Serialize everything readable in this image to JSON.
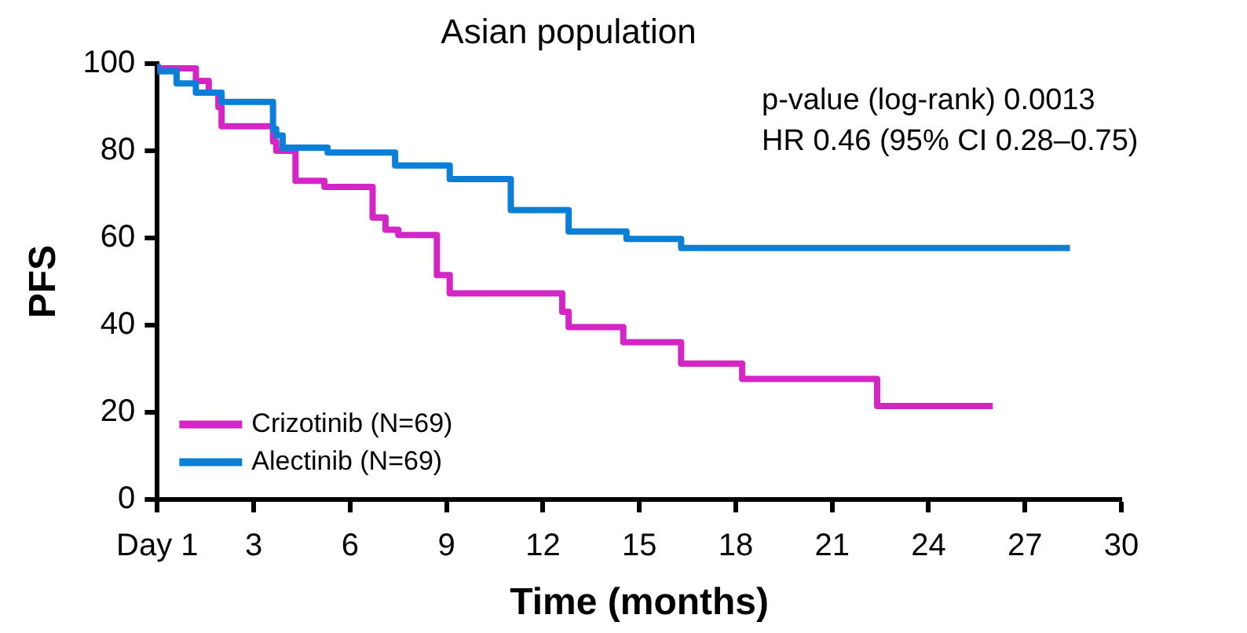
{
  "chart_data": {
    "type": "step",
    "title": "Asian population",
    "xlabel": "Time (months)",
    "ylabel": "PFS",
    "annotations": [
      "p-value (log-rank) 0.0013",
      "HR 0.46 (95% CI 0.28–0.75)"
    ],
    "xlim": [
      0,
      30
    ],
    "xticks": [
      {
        "value": 0,
        "label": "Day 1"
      },
      3,
      6,
      9,
      12,
      15,
      18,
      21,
      24,
      27,
      30
    ],
    "ylim": [
      0,
      100
    ],
    "yticks": [
      0,
      20,
      40,
      60,
      80,
      100
    ],
    "legend": "bottom left",
    "marker": "none",
    "line_style": "solid",
    "series": [
      {
        "name": "Crizotinib (N=69)",
        "color": "#d426c4",
        "x": [
          0,
          1.2,
          1.6,
          1.9,
          2.0,
          3.6,
          3.7,
          4.3,
          5.2,
          6.7,
          7.1,
          7.5,
          8.7,
          9.1,
          12.6,
          12.8,
          14.5,
          16.3,
          18.2,
          22.4,
          25.5,
          26.0
        ],
        "values": [
          100,
          98.9,
          96,
          93.3,
          90,
          85.6,
          82.1,
          80,
          73.1,
          71.7,
          64.7,
          61.9,
          60.7,
          51.5,
          47.3,
          43.1,
          39.6,
          36.1,
          31.2,
          27.7,
          21.5,
          21.5
        ]
      },
      {
        "name": "Alectinib (N=69)",
        "color": "#0a7fd8",
        "x": [
          0,
          0.6,
          1.2,
          2.0,
          3.6,
          3.7,
          3.9,
          5.3,
          7.4,
          9.1,
          11.0,
          12.8,
          14.6,
          16.3,
          17.6,
          28.4
        ],
        "values": [
          100,
          98.2,
          95.4,
          93.3,
          91.2,
          85,
          83.5,
          80.7,
          79.6,
          76.6,
          73.5,
          66.4,
          61.5,
          59.8,
          57.7,
          57.7
        ]
      }
    ]
  }
}
